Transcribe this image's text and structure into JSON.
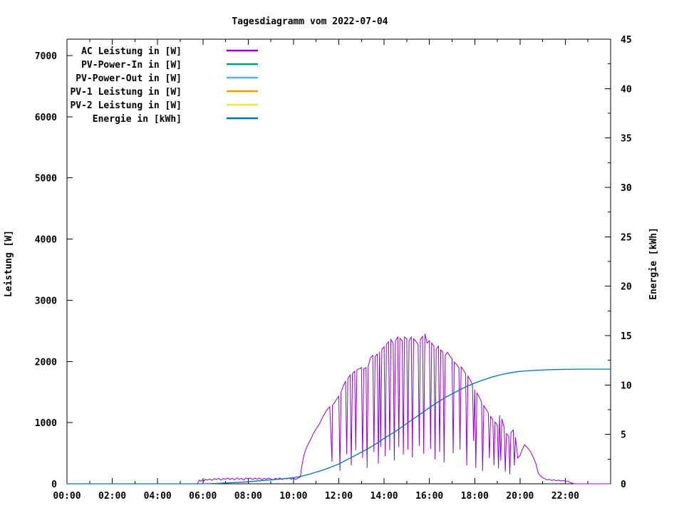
{
  "chart_data": {
    "type": "line",
    "title": "Tagesdiagramm vom 2022-07-04",
    "xlabel": "",
    "ylabel_left": "Leistung [W]",
    "ylabel_right": "Energie [kWh]",
    "grid": false,
    "legend_position": "top-left-inside",
    "x_axis": {
      "unit": "hour_of_day",
      "range": [
        0,
        24
      ],
      "major_ticks": [
        {
          "hour": 0,
          "label": "00:00"
        },
        {
          "hour": 2,
          "label": "02:00"
        },
        {
          "hour": 4,
          "label": "04:00"
        },
        {
          "hour": 6,
          "label": "06:00"
        },
        {
          "hour": 8,
          "label": "08:00"
        },
        {
          "hour": 10,
          "label": "10:00"
        },
        {
          "hour": 12,
          "label": "12:00"
        },
        {
          "hour": 14,
          "label": "14:00"
        },
        {
          "hour": 16,
          "label": "16:00"
        },
        {
          "hour": 18,
          "label": "18:00"
        },
        {
          "hour": 20,
          "label": "20:00"
        },
        {
          "hour": 22,
          "label": "22:00"
        }
      ],
      "minor_tick_hours": [
        1,
        3,
        5,
        7,
        9,
        11,
        13,
        15,
        17,
        19,
        21,
        23
      ]
    },
    "y_left": {
      "range": [
        0,
        7266
      ],
      "ticks": [
        0,
        1000,
        2000,
        3000,
        4000,
        5000,
        6000,
        7000
      ]
    },
    "y_right": {
      "range": [
        0,
        45
      ],
      "ticks": [
        0,
        5,
        10,
        15,
        20,
        25,
        30,
        35,
        40,
        45
      ],
      "minor_ticks": [
        2.5,
        7.5,
        12.5,
        17.5,
        22.5,
        27.5,
        32.5,
        37.5,
        42.5
      ]
    },
    "series": [
      {
        "name": "AC Leistung in [W]",
        "axis": "left",
        "color": "#9400d3",
        "points": [
          [
            0,
            0
          ],
          [
            5.75,
            0
          ],
          [
            5.8,
            30
          ],
          [
            5.85,
            60
          ],
          [
            5.9,
            40
          ],
          [
            6.0,
            70
          ],
          [
            6.05,
            45
          ],
          [
            6.1,
            75
          ],
          [
            6.2,
            60
          ],
          [
            6.3,
            80
          ],
          [
            6.4,
            55
          ],
          [
            6.5,
            85
          ],
          [
            6.6,
            70
          ],
          [
            6.7,
            90
          ],
          [
            6.8,
            60
          ],
          [
            6.9,
            85
          ],
          [
            7.0,
            75
          ],
          [
            7.1,
            95
          ],
          [
            7.2,
            70
          ],
          [
            7.3,
            90
          ],
          [
            7.4,
            65
          ],
          [
            7.5,
            95
          ],
          [
            7.6,
            75
          ],
          [
            7.7,
            90
          ],
          [
            7.8,
            60
          ],
          [
            7.9,
            95
          ],
          [
            8.0,
            80
          ],
          [
            8.1,
            95
          ],
          [
            8.2,
            70
          ],
          [
            8.3,
            95
          ],
          [
            8.4,
            75
          ],
          [
            8.5,
            95
          ],
          [
            8.6,
            65
          ],
          [
            8.7,
            90
          ],
          [
            8.8,
            75
          ],
          [
            8.9,
            95
          ],
          [
            9.0,
            80
          ],
          [
            9.1,
            60
          ],
          [
            9.2,
            90
          ],
          [
            9.3,
            75
          ],
          [
            9.4,
            95
          ],
          [
            9.5,
            70
          ],
          [
            9.6,
            90
          ],
          [
            9.7,
            80
          ],
          [
            9.8,
            95
          ],
          [
            9.9,
            75
          ],
          [
            10.0,
            90
          ],
          [
            10.1,
            70
          ],
          [
            10.2,
            95
          ],
          [
            10.3,
            110
          ],
          [
            10.35,
            250
          ],
          [
            10.45,
            450
          ],
          [
            10.55,
            570
          ],
          [
            10.65,
            650
          ],
          [
            10.75,
            720
          ],
          [
            10.85,
            800
          ],
          [
            11.0,
            900
          ],
          [
            11.1,
            950
          ],
          [
            11.2,
            1020
          ],
          [
            11.3,
            1100
          ],
          [
            11.4,
            1160
          ],
          [
            11.5,
            1220
          ],
          [
            11.6,
            1260
          ],
          [
            11.7,
            360
          ],
          [
            11.72,
            1280
          ],
          [
            11.8,
            1320
          ],
          [
            11.9,
            1380
          ],
          [
            12.0,
            1430
          ],
          [
            12.05,
            210
          ],
          [
            12.1,
            1500
          ],
          [
            12.2,
            1600
          ],
          [
            12.3,
            1680
          ],
          [
            12.35,
            480
          ],
          [
            12.4,
            1720
          ],
          [
            12.5,
            1780
          ],
          [
            12.55,
            300
          ],
          [
            12.6,
            1800
          ],
          [
            12.7,
            1840
          ],
          [
            12.75,
            550
          ],
          [
            12.8,
            1860
          ],
          [
            12.9,
            1880
          ],
          [
            13.0,
            1900
          ],
          [
            13.05,
            420
          ],
          [
            13.1,
            1880
          ],
          [
            13.2,
            1900
          ],
          [
            13.25,
            260
          ],
          [
            13.3,
            1920
          ],
          [
            13.4,
            2060
          ],
          [
            13.5,
            2100
          ],
          [
            13.55,
            520
          ],
          [
            13.6,
            2080
          ],
          [
            13.7,
            2120
          ],
          [
            13.75,
            330
          ],
          [
            13.8,
            2160
          ],
          [
            13.85,
            600
          ],
          [
            13.9,
            2200
          ],
          [
            14.0,
            2240
          ],
          [
            14.05,
            450
          ],
          [
            14.1,
            2280
          ],
          [
            14.2,
            2320
          ],
          [
            14.25,
            550
          ],
          [
            14.3,
            2360
          ],
          [
            14.4,
            2300
          ],
          [
            14.45,
            380
          ],
          [
            14.5,
            2340
          ],
          [
            14.6,
            2400
          ],
          [
            14.65,
            600
          ],
          [
            14.7,
            2380
          ],
          [
            14.8,
            2340
          ],
          [
            14.85,
            480
          ],
          [
            14.9,
            2400
          ],
          [
            15.0,
            2370
          ],
          [
            15.05,
            560
          ],
          [
            15.1,
            2340
          ],
          [
            15.2,
            2400
          ],
          [
            15.25,
            430
          ],
          [
            15.3,
            2370
          ],
          [
            15.4,
            2330
          ],
          [
            15.5,
            2280
          ],
          [
            15.55,
            620
          ],
          [
            15.6,
            2360
          ],
          [
            15.7,
            2410
          ],
          [
            15.75,
            490
          ],
          [
            15.8,
            2450
          ],
          [
            15.9,
            2300
          ],
          [
            16.0,
            2340
          ],
          [
            16.05,
            570
          ],
          [
            16.1,
            2300
          ],
          [
            16.2,
            2250
          ],
          [
            16.25,
            400
          ],
          [
            16.3,
            2200
          ],
          [
            16.4,
            2250
          ],
          [
            16.45,
            520
          ],
          [
            16.5,
            2190
          ],
          [
            16.6,
            2150
          ],
          [
            16.65,
            350
          ],
          [
            16.7,
            2100
          ],
          [
            16.8,
            2150
          ],
          [
            16.9,
            2090
          ],
          [
            17.0,
            2040
          ],
          [
            17.05,
            500
          ],
          [
            17.1,
            1990
          ],
          [
            17.2,
            1950
          ],
          [
            17.3,
            1900
          ],
          [
            17.35,
            560
          ],
          [
            17.4,
            1910
          ],
          [
            17.5,
            1860
          ],
          [
            17.6,
            1800
          ],
          [
            17.65,
            300
          ],
          [
            17.7,
            1760
          ],
          [
            17.8,
            1700
          ],
          [
            17.9,
            1620
          ],
          [
            17.95,
            700
          ],
          [
            18.0,
            1540
          ],
          [
            18.05,
            260
          ],
          [
            18.1,
            1480
          ],
          [
            18.2,
            1420
          ],
          [
            18.3,
            1340
          ],
          [
            18.35,
            210
          ],
          [
            18.4,
            1280
          ],
          [
            18.5,
            1220
          ],
          [
            18.6,
            1160
          ],
          [
            18.65,
            420
          ],
          [
            18.7,
            1100
          ],
          [
            18.8,
            1050
          ],
          [
            18.85,
            300
          ],
          [
            18.9,
            1010
          ],
          [
            19.0,
            960
          ],
          [
            19.05,
            250
          ],
          [
            19.1,
            1120
          ],
          [
            19.15,
            380
          ],
          [
            19.2,
            1060
          ],
          [
            19.3,
            920
          ],
          [
            19.35,
            200
          ],
          [
            19.4,
            820
          ],
          [
            19.5,
            780
          ],
          [
            19.55,
            160
          ],
          [
            19.6,
            840
          ],
          [
            19.7,
            880
          ],
          [
            19.75,
            300
          ],
          [
            19.8,
            760
          ],
          [
            19.9,
            420
          ],
          [
            20.0,
            460
          ],
          [
            20.1,
            560
          ],
          [
            20.2,
            640
          ],
          [
            20.3,
            600
          ],
          [
            20.4,
            560
          ],
          [
            20.5,
            500
          ],
          [
            20.6,
            420
          ],
          [
            20.7,
            330
          ],
          [
            20.75,
            250
          ],
          [
            20.8,
            180
          ],
          [
            20.9,
            130
          ],
          [
            21.0,
            100
          ],
          [
            21.1,
            80
          ],
          [
            21.2,
            65
          ],
          [
            21.3,
            75
          ],
          [
            21.4,
            55
          ],
          [
            21.5,
            65
          ],
          [
            21.6,
            50
          ],
          [
            21.7,
            60
          ],
          [
            21.8,
            45
          ],
          [
            21.9,
            55
          ],
          [
            22.0,
            40
          ],
          [
            22.1,
            45
          ],
          [
            22.2,
            25
          ],
          [
            22.3,
            10
          ],
          [
            22.4,
            0
          ],
          [
            24,
            0
          ]
        ]
      },
      {
        "name": "PV-Power-In in [W]",
        "axis": "left",
        "color": "#009e73",
        "points": []
      },
      {
        "name": "PV-Power-Out in [W]",
        "axis": "left",
        "color": "#56b4e9",
        "points": []
      },
      {
        "name": "PV-1 Leistung in [W]",
        "axis": "left",
        "color": "#e69f00",
        "points": []
      },
      {
        "name": "PV-2 Leistung in [W]",
        "axis": "left",
        "color": "#f0e442",
        "points": []
      },
      {
        "name": "Energie in [kWh]",
        "axis": "right",
        "color": "#0072b2",
        "points": [
          [
            0,
            0
          ],
          [
            6,
            0
          ],
          [
            6.5,
            0.03
          ],
          [
            7,
            0.08
          ],
          [
            7.5,
            0.14
          ],
          [
            8,
            0.2
          ],
          [
            8.5,
            0.3
          ],
          [
            9,
            0.4
          ],
          [
            9.5,
            0.5
          ],
          [
            10,
            0.62
          ],
          [
            10.25,
            0.72
          ],
          [
            10.5,
            0.85
          ],
          [
            10.75,
            1.0
          ],
          [
            11,
            1.18
          ],
          [
            11.25,
            1.35
          ],
          [
            11.5,
            1.55
          ],
          [
            11.75,
            1.78
          ],
          [
            12,
            2.0
          ],
          [
            12.25,
            2.3
          ],
          [
            12.5,
            2.6
          ],
          [
            12.75,
            2.9
          ],
          [
            13,
            3.2
          ],
          [
            13.25,
            3.5
          ],
          [
            13.5,
            3.85
          ],
          [
            13.75,
            4.2
          ],
          [
            14,
            4.6
          ],
          [
            14.25,
            4.95
          ],
          [
            14.5,
            5.3
          ],
          [
            14.75,
            5.7
          ],
          [
            15,
            6.1
          ],
          [
            15.25,
            6.5
          ],
          [
            15.5,
            6.9
          ],
          [
            15.75,
            7.3
          ],
          [
            16,
            7.7
          ],
          [
            16.25,
            8.1
          ],
          [
            16.5,
            8.45
          ],
          [
            16.75,
            8.8
          ],
          [
            17,
            9.1
          ],
          [
            17.25,
            9.4
          ],
          [
            17.5,
            9.7
          ],
          [
            17.75,
            9.95
          ],
          [
            18,
            10.2
          ],
          [
            18.25,
            10.4
          ],
          [
            18.5,
            10.6
          ],
          [
            18.75,
            10.8
          ],
          [
            19,
            10.95
          ],
          [
            19.25,
            11.1
          ],
          [
            19.5,
            11.2
          ],
          [
            19.75,
            11.3
          ],
          [
            20,
            11.38
          ],
          [
            20.25,
            11.42
          ],
          [
            20.5,
            11.46
          ],
          [
            21,
            11.52
          ],
          [
            21.5,
            11.56
          ],
          [
            22,
            11.58
          ],
          [
            22.5,
            11.6
          ],
          [
            23,
            11.6
          ],
          [
            24,
            11.6
          ]
        ]
      }
    ]
  }
}
